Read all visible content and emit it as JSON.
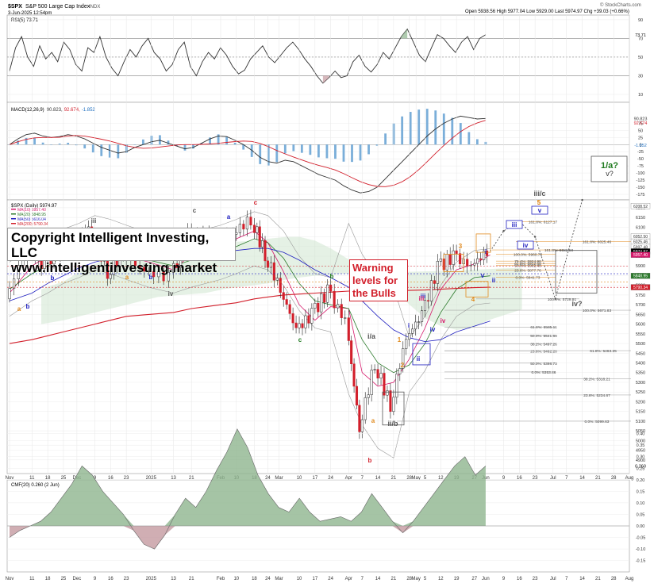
{
  "header": {
    "symbol": "$SPX",
    "name": "S&P 500 Large Cap Index",
    "exchange": "INDX",
    "date": "3-Jun-2025 12:54pm",
    "ohlc": "Open 5938.56  High 5977.04  Low 5929.00  Last 5974.97  Chg +39.03 (+0.66%)",
    "watermark": "© StockCharts.com"
  },
  "rsi": {
    "label": "RSI(5) 73.71",
    "current_label": "73.71",
    "ticks": [
      "90",
      "70",
      "50",
      "30",
      "10"
    ]
  },
  "macd": {
    "label_prefix": "MACD(12,26,9)",
    "label_values": [
      "90.823,",
      "92.674,",
      "-1.852"
    ],
    "current_labels": [
      "90.823",
      "92.674",
      "-1.852"
    ],
    "ticks": [
      "75",
      "50",
      "25",
      "0",
      "-25",
      "-50",
      "-75",
      "-100",
      "-125",
      "-150",
      "-175"
    ]
  },
  "price": {
    "label": "$SPX (Daily) 5974.97",
    "legend": [
      {
        "text": "MA(10) 5957.40",
        "color": "#d6186b"
      },
      {
        "text": "MA(20) 5848.95",
        "color": "#2c7a2c"
      },
      {
        "text": "MA(50) 5616.04",
        "color": "#2020c0"
      },
      {
        "text": "MA(200) 5790.34",
        "color": "#d21f2b"
      }
    ],
    "ticks": [
      "6200",
      "6150",
      "6100",
      "6050",
      "6000",
      "5950",
      "5900",
      "5850",
      "5800",
      "5750",
      "5700",
      "5650",
      "5600",
      "5550",
      "5500",
      "5450",
      "5400",
      "5350",
      "5300",
      "5250",
      "5200",
      "5150",
      "5100",
      "5050",
      "5000",
      "4950",
      "4900"
    ],
    "right_labels": [
      "6208.52",
      "6052.50",
      "6025.46",
      "5997.48",
      "5974.97",
      "5957.40",
      "5848.95",
      "5790.34"
    ]
  },
  "cmf": {
    "label": "CMF(20) 0.260 (2 Jun)",
    "current_label": "0.260",
    "ticks": [
      "0.40",
      "0.35",
      "0.30",
      "0.25",
      "0.20",
      "0.15",
      "0.10",
      "0.05",
      "0.00",
      "-0.05",
      "-0.10",
      "-0.15"
    ]
  },
  "x_axis": [
    "Nov",
    "11",
    "18",
    "25",
    "Dec",
    "9",
    "16",
    "23",
    "2025",
    "13",
    "21",
    "Feb",
    "10",
    "18",
    "24",
    "Mar",
    "10",
    "17",
    "24",
    "Apr",
    "7",
    "14",
    "21",
    "28",
    "May",
    "5",
    "12",
    "19",
    "27",
    "Jun",
    "9",
    "16",
    "23",
    "Jul",
    "7",
    "14",
    "21",
    "28",
    "Aug"
  ],
  "copyright": {
    "line1": "Copyright Intelligent Investing, LLC",
    "line2": "www.intelligentinvesting.market"
  },
  "warning": {
    "lines": [
      "Warning",
      "levels for",
      "the Bulls"
    ]
  },
  "fib_labels": [
    "161.8%: 6127.17",
    "161.8%: 6025.46",
    "161.8%: 5982.58",
    "100.0%: 5960.75",
    "76.4%: 5924.98",
    "61.8%: 5912.58",
    "50.0%: 5902.48",
    "23.6%: 5877.76",
    "0.0%: 5841.73",
    "100.0%: 5729.91",
    "100.0%: 5671.83",
    "61.8%: 5585.11",
    "50.0%: 5541.69",
    "38.2%: 5497.26",
    "23.6%: 5462.20",
    "61.8%: 5463.25",
    "50.0%: 5398.73",
    "0.0%: 5353.46",
    "38.2%: 5318.21",
    "23.6%: 5234.67",
    "0.0%: 5099.63"
  ],
  "wave_labels": {
    "forecast_top": "1/a?",
    "forecast_v": "v?",
    "iii_c": "iii/c",
    "five": "5",
    "iv_q": "iv?",
    "ii_b": "ii/b",
    "i_a": "i/a",
    "iii_boxes": [
      "iii",
      "iv",
      "v"
    ],
    "misc": [
      "iii",
      "iv",
      "a",
      "b",
      "c",
      "b",
      "a",
      "b",
      "a",
      "b",
      "c",
      "i",
      "ii",
      "iii",
      "iv",
      "v",
      "1",
      "2",
      "3",
      "4",
      "5",
      "i",
      "ii",
      "iii",
      "iv",
      "a",
      "b",
      "c"
    ]
  },
  "chart_data": {
    "type": "line",
    "title": "S&P 500 Large Cap Index",
    "xlabel": "",
    "ylabel": "",
    "ylim": [
      4850,
      6220
    ],
    "x": [
      "Nov 1",
      "Nov 11",
      "Nov 18",
      "Nov 25",
      "Dec 2",
      "Dec 9",
      "Dec 16",
      "Dec 23",
      "Jan 2",
      "Jan 13",
      "Jan 21",
      "Feb 3",
      "Feb 10",
      "Feb 18",
      "Feb 24",
      "Mar 3",
      "Mar 10",
      "Mar 17",
      "Mar 24",
      "Apr 1",
      "Apr 7",
      "Apr 14",
      "Apr 21",
      "Apr 28",
      "May 5",
      "May 12",
      "May 19",
      "May 27",
      "Jun 3"
    ],
    "series": [
      {
        "name": "$SPX",
        "values": [
          5730,
          6000,
          5900,
          6010,
          6050,
          6090,
          5870,
          5970,
          5870,
          5840,
          6050,
          6040,
          6070,
          6140,
          5960,
          5780,
          5570,
          5650,
          5770,
          5620,
          5060,
          5400,
          5180,
          5530,
          5650,
          5890,
          5950,
          5900,
          5975
        ]
      },
      {
        "name": "MA(10)",
        "values": [
          5760,
          5900,
          5950,
          5990,
          6020,
          6040,
          5990,
          5950,
          5920,
          5880,
          5960,
          6010,
          6040,
          6080,
          6020,
          5870,
          5700,
          5620,
          5690,
          5680,
          5350,
          5280,
          5300,
          5420,
          5580,
          5780,
          5880,
          5910,
          5957
        ]
      },
      {
        "name": "MA(20)",
        "values": [
          5780,
          5860,
          5900,
          5950,
          5980,
          6020,
          6000,
          5970,
          5930,
          5900,
          5930,
          5970,
          6000,
          6040,
          6020,
          5940,
          5810,
          5720,
          5700,
          5680,
          5520,
          5400,
          5350,
          5390,
          5500,
          5660,
          5780,
          5840,
          5849
        ]
      },
      {
        "name": "MA(50)",
        "values": [
          5720,
          5760,
          5810,
          5850,
          5890,
          5920,
          5940,
          5950,
          5950,
          5950,
          5960,
          5970,
          5980,
          5990,
          5990,
          5970,
          5930,
          5880,
          5840,
          5790,
          5720,
          5640,
          5570,
          5530,
          5510,
          5520,
          5560,
          5590,
          5616
        ]
      },
      {
        "name": "MA(200)",
        "values": [
          5500,
          5520,
          5540,
          5560,
          5580,
          5600,
          5620,
          5640,
          5650,
          5660,
          5680,
          5700,
          5710,
          5730,
          5740,
          5750,
          5755,
          5760,
          5765,
          5770,
          5770,
          5770,
          5772,
          5774,
          5776,
          5780,
          5784,
          5788,
          5790
        ]
      }
    ],
    "forecast": [
      [
        "Jun 3",
        5975
      ],
      [
        "Jun 9",
        6080
      ],
      [
        "Jun 16",
        6130
      ],
      [
        "Jun 23",
        6050
      ],
      [
        "Jul 2",
        5730
      ],
      [
        "Jul 14",
        6240
      ]
    ]
  }
}
